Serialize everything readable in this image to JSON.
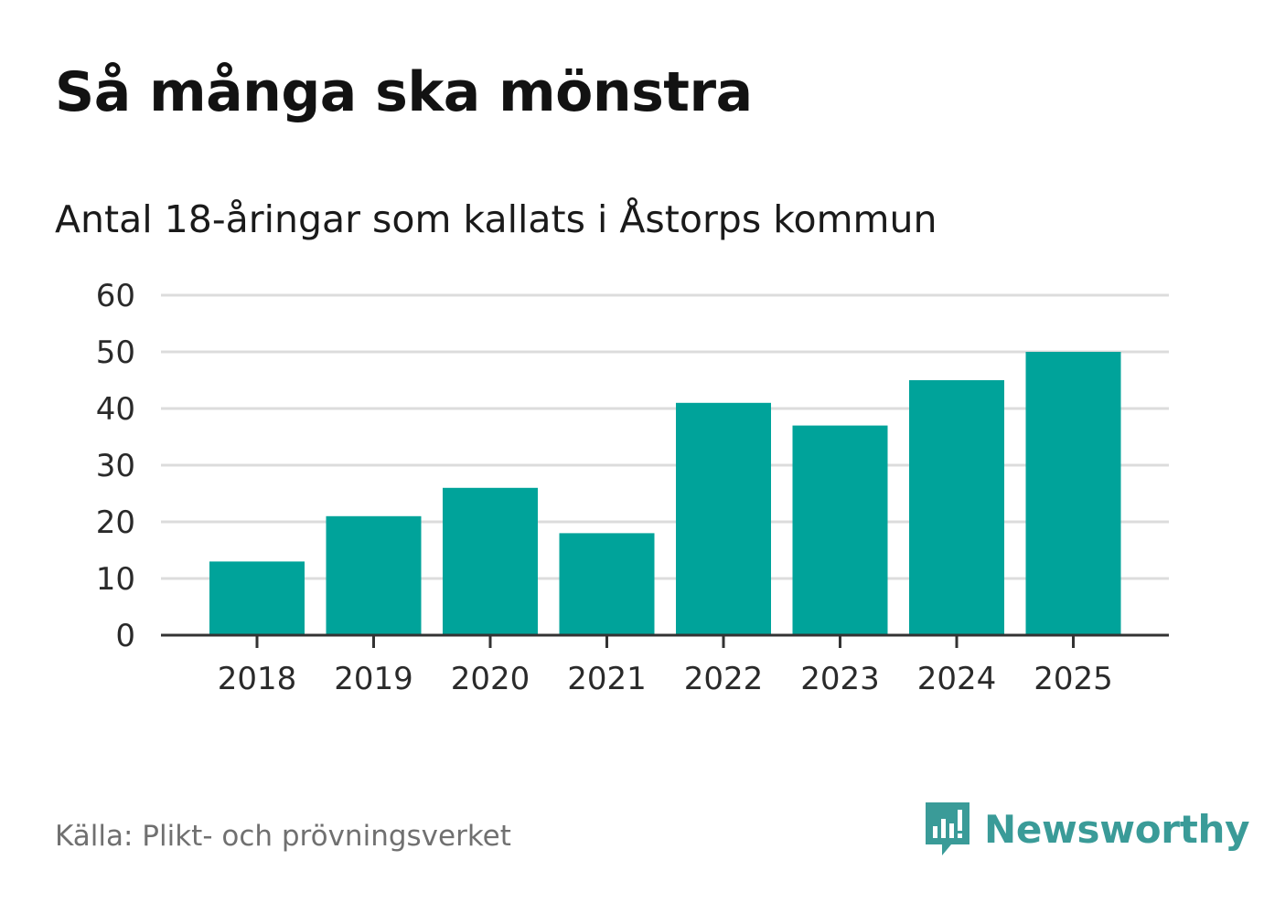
{
  "title": "Så många ska mönstra",
  "subtitle": "Antal 18-åringar som kallats i Åstorps kommun",
  "source": "Källa: Plikt- och prövningsverket",
  "brand": {
    "name": "Newsworthy",
    "icon": "newsworthy-logo-icon",
    "color": "#3a9b98"
  },
  "chart_data": {
    "type": "bar",
    "categories": [
      "2018",
      "2019",
      "2020",
      "2021",
      "2022",
      "2023",
      "2024",
      "2025"
    ],
    "values": [
      13,
      21,
      26,
      18,
      41,
      37,
      45,
      50
    ],
    "ylim": [
      0,
      60
    ],
    "yticks": [
      0,
      10,
      20,
      30,
      40,
      50,
      60
    ],
    "grid": true,
    "bar_color": "#00a39a",
    "xlabel": "",
    "ylabel": ""
  }
}
